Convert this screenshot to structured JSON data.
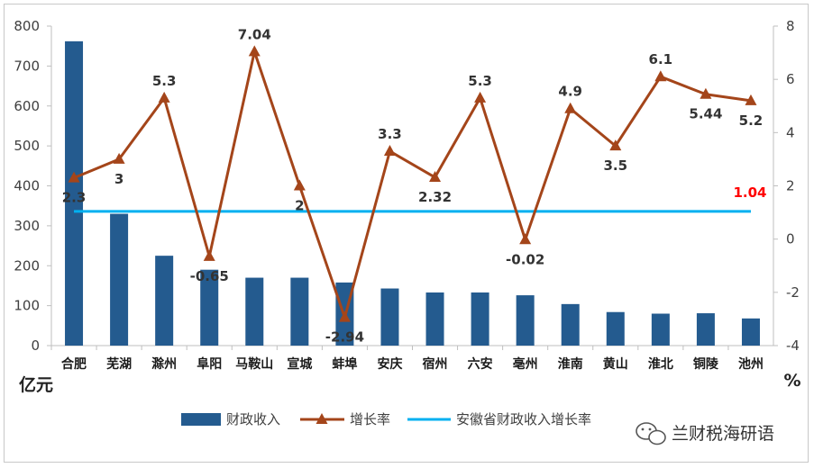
{
  "chart_data": {
    "type": "bar+line",
    "categories": [
      "合肥",
      "芜湖",
      "滁州",
      "阜阳",
      "马鞍山",
      "宣城",
      "蚌埠",
      "安庆",
      "宿州",
      "六安",
      "亳州",
      "淮南",
      "黄山",
      "淮北",
      "铜陵",
      "池州"
    ],
    "bar_series": {
      "name": "财政收入",
      "color": "#245b8f",
      "values": [
        762,
        330,
        225,
        190,
        170,
        170,
        158,
        143,
        133,
        133,
        126,
        104,
        84,
        80,
        81,
        68
      ]
    },
    "line_series": {
      "name": "增长率",
      "color": "#a4451a",
      "values": [
        2.3,
        3,
        5.3,
        -0.65,
        7.04,
        2,
        -2.94,
        3.3,
        2.32,
        5.3,
        -0.02,
        4.9,
        3.5,
        6.1,
        5.44,
        5.2
      ],
      "labels": [
        "2.3",
        "3",
        "5.3",
        "-0.65",
        "7.04",
        "2",
        "-2.94",
        "3.3",
        "2.32",
        "5.3",
        "-0.02",
        "4.9",
        "3.5",
        "6.1",
        "5.44",
        "5.2"
      ]
    },
    "reference_line": {
      "name": "安徽省财政收入增长率",
      "color": "#00b0f0",
      "value": 1.04,
      "label": "1.04",
      "label_color": "#ff0000"
    },
    "y_left": {
      "unit": "亿元",
      "min": 0,
      "max": 800,
      "ticks": [
        "0",
        "100",
        "200",
        "300",
        "400",
        "500",
        "600",
        "700",
        "800"
      ]
    },
    "y_right": {
      "unit": "%",
      "min": -4,
      "max": 8,
      "ticks": [
        "-4",
        "-2",
        "0",
        "2",
        "4",
        "6",
        "8"
      ]
    },
    "grid": false,
    "legend_position": "bottom"
  },
  "watermark": {
    "text": "兰财税海研语",
    "icon": "wechat-icon"
  }
}
